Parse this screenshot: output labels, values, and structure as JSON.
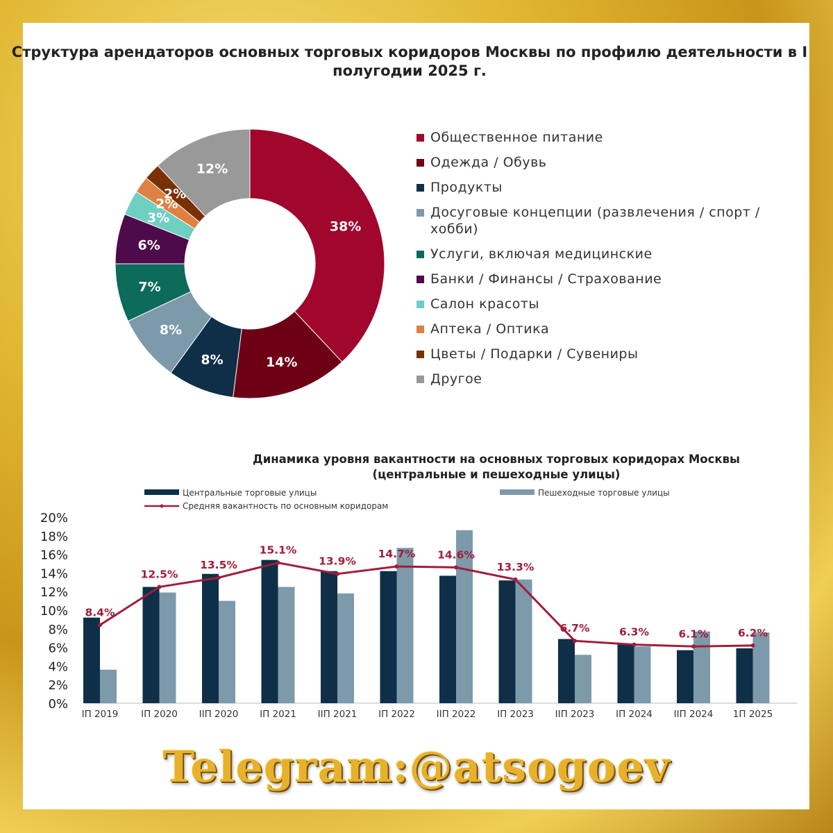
{
  "chart_data": [
    {
      "type": "pie",
      "title": "Структура арендаторов основных торговых коридоров Москвы по профилю деятельности в I полугодии 2025 г.",
      "slices": [
        {
          "label": "Общественное питание",
          "value": 38,
          "value_label": "38%",
          "color": "#a1062c"
        },
        {
          "label": "Одежда / Обувь",
          "value": 14,
          "value_label": "14%",
          "color": "#6e0016"
        },
        {
          "label": "Продукты",
          "value": 8,
          "value_label": "8%",
          "color": "#0e2f47"
        },
        {
          "label": "Досуговые концепции (развлечения / спорт / хобби)",
          "value": 8,
          "value_label": "8%",
          "color": "#7d9aab"
        },
        {
          "label": "Услуги, включая медицинские",
          "value": 7,
          "value_label": "7%",
          "color": "#0c6b5a"
        },
        {
          "label": "Банки / Финансы / Страхование",
          "value": 6,
          "value_label": "6%",
          "color": "#4e0b4b"
        },
        {
          "label": "Салон красоты",
          "value": 3,
          "value_label": "3%",
          "color": "#6ecfc3"
        },
        {
          "label": "Аптека / Оптика",
          "value": 2,
          "value_label": "2%",
          "color": "#de8142"
        },
        {
          "label": "Цветы / Подарки / Сувениры",
          "value": 2,
          "value_label": "2%",
          "color": "#7a3007"
        },
        {
          "label": "Другое",
          "value": 12,
          "value_label": "12%",
          "color": "#999999"
        }
      ]
    },
    {
      "type": "bar",
      "title_line1": "Динамика уровня вакантности на основных торговых коридорах Москвы",
      "title_line2": "(центральные и пешеходные улицы)",
      "categories": [
        "IП 2019",
        "IП 2020",
        "IIП 2020",
        "IП 2021",
        "IIП 2021",
        "IП 2022",
        "IIП 2022",
        "IП 2023",
        "IIП 2023",
        "IП 2024",
        "IIП 2024",
        "1П 2025"
      ],
      "ylim": [
        0,
        20
      ],
      "y_ticks": [
        "0%",
        "2%",
        "4%",
        "6%",
        "8%",
        "10%",
        "12%",
        "14%",
        "16%",
        "18%",
        "20%"
      ],
      "legend_placement": "top",
      "series": [
        {
          "name": "Центральные торговые улицы",
          "color": "#0e2f47",
          "values": [
            9.2,
            12.5,
            13.9,
            15.4,
            14.2,
            14.2,
            13.7,
            13.2,
            6.9,
            6.3,
            5.7,
            5.9
          ]
        },
        {
          "name": "Пешеходные торговые улицы",
          "color": "#7d9aab",
          "values": [
            3.6,
            11.9,
            11.0,
            12.5,
            11.8,
            16.7,
            18.6,
            13.3,
            5.2,
            6.1,
            7.7,
            7.6
          ]
        }
      ],
      "line": {
        "name": "Средняя вакантность по основным коридорам",
        "color": "#a11d3a",
        "values": [
          8.4,
          12.5,
          13.5,
          15.1,
          13.9,
          14.7,
          14.6,
          13.3,
          6.7,
          6.3,
          6.1,
          6.2
        ],
        "labels": [
          "8.4%",
          "12.5%",
          "13.5%",
          "15.1%",
          "13.9%",
          "14.7%",
          "14.6%",
          "13.3%",
          "6.7%",
          "6.3%",
          "6.1%",
          "6.2%"
        ]
      }
    }
  ],
  "watermark": "Telegram:@atsogoev"
}
